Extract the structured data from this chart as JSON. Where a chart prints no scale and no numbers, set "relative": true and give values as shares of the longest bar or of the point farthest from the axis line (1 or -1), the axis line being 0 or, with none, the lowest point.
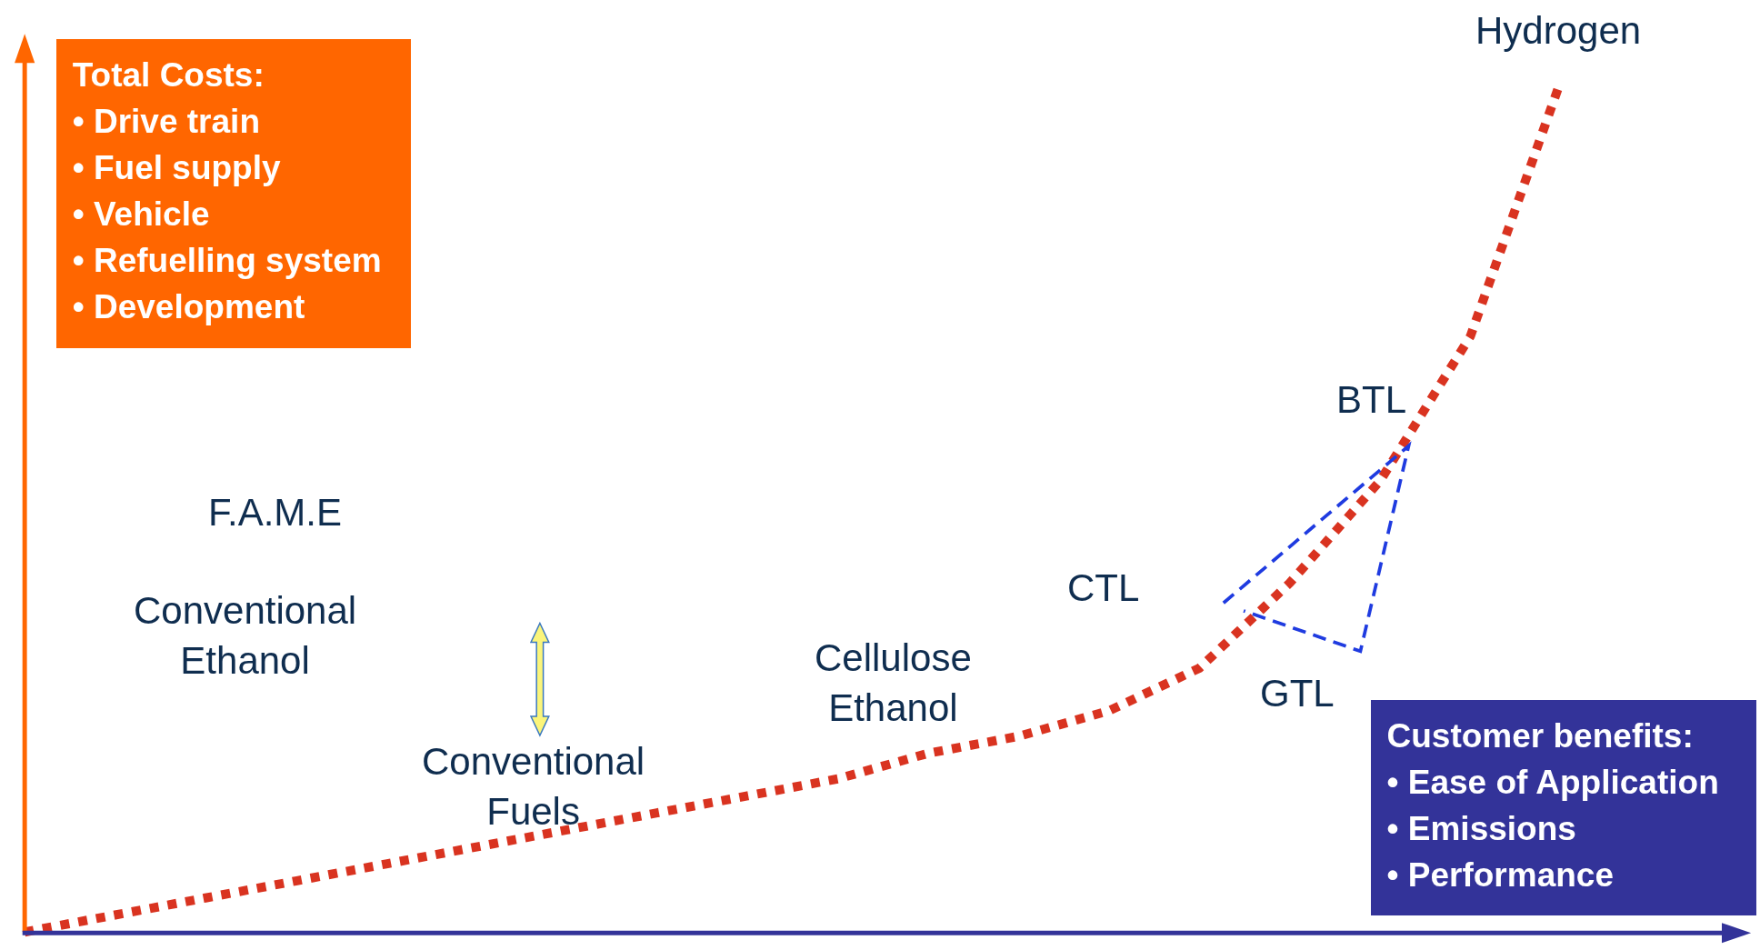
{
  "chart_data": {
    "type": "line",
    "relative": true,
    "categories": [
      null,
      null,
      null,
      null,
      null,
      null,
      null,
      null,
      null,
      null,
      null,
      null,
      null,
      null,
      null,
      null,
      null,
      null,
      null,
      null
    ],
    "series": [
      {
        "color": "#d93320",
        "values": [
          0.0,
          0.02,
          0.04,
          0.06,
          0.08,
          0.1,
          0.12,
          0.14,
          0.16,
          0.18,
          0.21,
          0.23,
          0.26,
          0.31,
          0.41,
          0.53,
          0.7,
          1.0,
          null,
          null
        ]
      }
    ],
    "line_style": "dotted",
    "marker": "none",
    "annotations": [
      "Hydrogen",
      "BTL",
      "F.A.M.E",
      "Conventional\nEthanol",
      "CTL",
      "Cellulose\nEthanol",
      "GTL",
      "Conventional\nFuels",
      "Total Costs:\n• Drive train\n• Fuel supply\n• Vehicle\n• Refuelling system\n• Development",
      "Customer benefits:\n• Ease of Application\n• Emissions\n• Performance"
    ]
  }
}
